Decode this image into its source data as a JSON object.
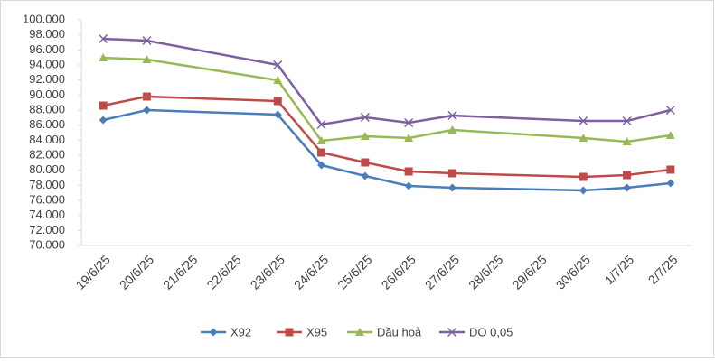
{
  "chart_data": {
    "type": "line",
    "categories": [
      "19/6/25",
      "20/6/25",
      "21/6/25",
      "22/6/25",
      "23/6/25",
      "24/6/25",
      "25/6/25",
      "26/6/25",
      "27/6/25",
      "28/6/25",
      "29/6/25",
      "30/6/25",
      "1/7/25",
      "2/7/25"
    ],
    "connect_gaps": true,
    "series": [
      {
        "name": "X92",
        "color": "#4a7ebb",
        "marker": "diamond",
        "values": [
          86680,
          88000,
          null,
          null,
          87400,
          80680,
          79240,
          77920,
          77680,
          null,
          null,
          77320,
          77680,
          78280
        ]
      },
      {
        "name": "X95",
        "color": "#be4b48",
        "marker": "square",
        "values": [
          88600,
          89800,
          null,
          null,
          89200,
          82360,
          81040,
          79840,
          79600,
          null,
          null,
          79120,
          79360,
          80080
        ]
      },
      {
        "name": "Dầu hoả",
        "color": "#98b954",
        "marker": "triangle",
        "values": [
          94960,
          94720,
          null,
          null,
          91960,
          83920,
          84520,
          84280,
          85360,
          null,
          null,
          84280,
          83800,
          84640
        ]
      },
      {
        "name": "DO 0,05",
        "color": "#7d60a0",
        "marker": "x",
        "values": [
          97480,
          97240,
          null,
          null,
          94000,
          86080,
          87040,
          86320,
          87280,
          null,
          null,
          86560,
          86560,
          88000
        ]
      }
    ],
    "ylim": [
      70000,
      100000
    ],
    "yticks": [
      {
        "value": 70000,
        "label": "70.000"
      },
      {
        "value": 72000,
        "label": "72.000"
      },
      {
        "value": 74000,
        "label": "74.000"
      },
      {
        "value": 76000,
        "label": "76.000"
      },
      {
        "value": 78000,
        "label": "78.000"
      },
      {
        "value": 80000,
        "label": "80.000"
      },
      {
        "value": 82000,
        "label": "82.000"
      },
      {
        "value": 84000,
        "label": "84.000"
      },
      {
        "value": 86000,
        "label": "86.000"
      },
      {
        "value": 88000,
        "label": "88.000"
      },
      {
        "value": 90000,
        "label": "90.000"
      },
      {
        "value": 92000,
        "label": "92.000"
      },
      {
        "value": 94000,
        "label": "94.000"
      },
      {
        "value": 96000,
        "label": "96.000"
      },
      {
        "value": 98000,
        "label": "98.000"
      },
      {
        "value": 100000,
        "label": "100.000"
      }
    ],
    "grid": false,
    "legend": "bottom"
  }
}
